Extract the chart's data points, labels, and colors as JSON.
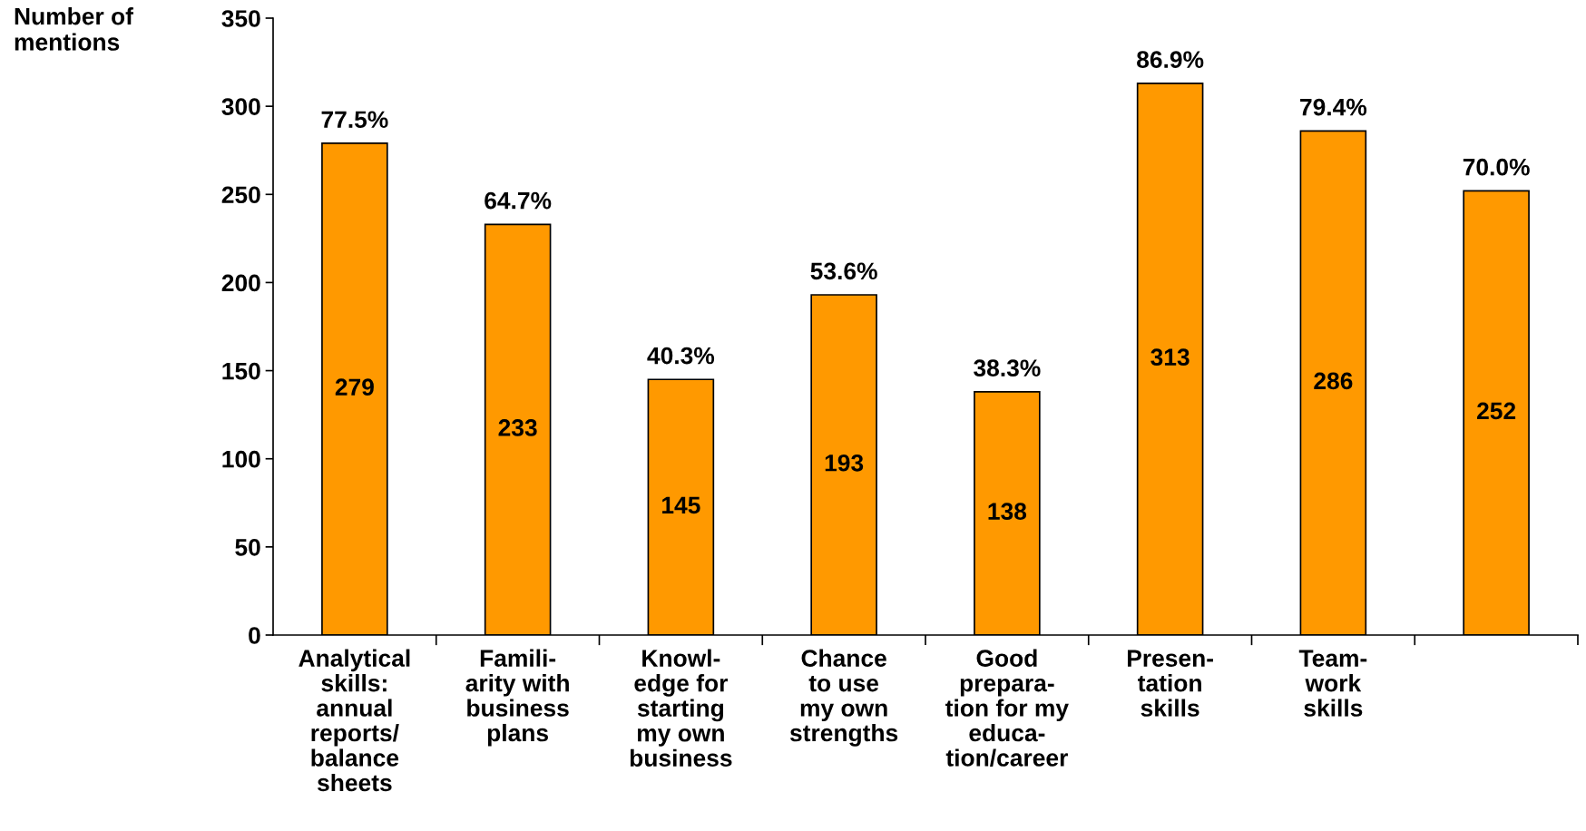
{
  "chart_data": {
    "type": "bar",
    "ylabel": "Number of\nmentions",
    "categories": [
      "Analytical\nskills:\nannual\nreports/\nbalance\nsheets",
      "Famili-\narity with\nbusiness\nplans",
      "Knowl-\nedge for\nstarting\nmy own\nbusiness",
      "Chance\nto use\nmy own\nstrengths",
      "Good\nprepara-\ntion for my\neduca-\ntion/career",
      "Presen-\ntation\nskills",
      "Team-\nwork\nskills",
      null
    ],
    "values": [
      279,
      233,
      145,
      193,
      138,
      313,
      286,
      252
    ],
    "annotations": [
      {
        "text": "77.5%",
        "x": "Analytical\nskills:\nannual\nreports/\nbalance\nsheets",
        "y": 279
      },
      {
        "text": "64.7%",
        "x": "Famili-\narity with\nbusiness\nplans",
        "y": 233
      },
      {
        "text": "40.3%",
        "x": "Knowl-\nedge for\nstarting\nmy own\nbusiness",
        "y": 145
      },
      {
        "text": "53.6%",
        "x": "Chance\nto use\nmy own\nstrengths",
        "y": 193
      },
      {
        "text": "38.3%",
        "x": "Good\nprepara-\ntion for my\neduca-\ntion/career",
        "y": 138
      },
      {
        "text": "86.9%",
        "x": "Presen-\ntation\nskills",
        "y": 313
      },
      {
        "text": "79.4%",
        "x": "Team-\nwork\nskills",
        "y": 286
      },
      {
        "text": "70.0%",
        "y": 252
      }
    ],
    "color": "#ff9900",
    "data_labels": true,
    "ylim": [
      0,
      350
    ],
    "yticks": [
      0,
      50,
      100,
      150,
      200,
      250,
      300,
      350
    ],
    "grid": false
  }
}
